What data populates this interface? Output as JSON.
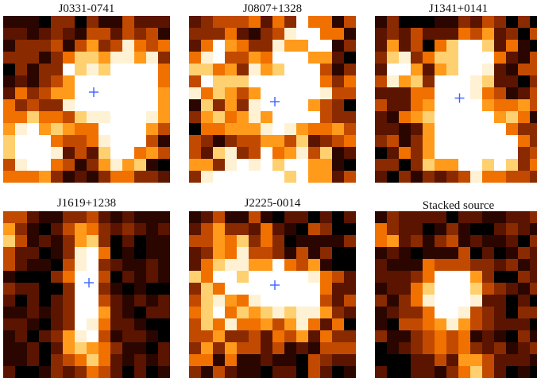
{
  "figure": {
    "panels": [
      {
        "title": "J0331-0741",
        "marker": "plus-marker"
      },
      {
        "title": "J0807+1328",
        "marker": "plus-marker"
      },
      {
        "title": "J1341+0141",
        "marker": "plus-marker"
      },
      {
        "title": "J1619+1238",
        "marker": "plus-marker"
      },
      {
        "title": "J2225-0014",
        "marker": "plus-marker"
      },
      {
        "title": "Stacked source",
        "marker": ""
      }
    ],
    "colors": {
      "background": "#ffffff",
      "marker": "#3a63ff",
      "colormap": [
        "#000000",
        "#2b0600",
        "#5a1400",
        "#8a2a00",
        "#c24a00",
        "#f07000",
        "#ff9a1a",
        "#ffd070",
        "#fff2d4",
        "#ffffff"
      ]
    }
  }
}
